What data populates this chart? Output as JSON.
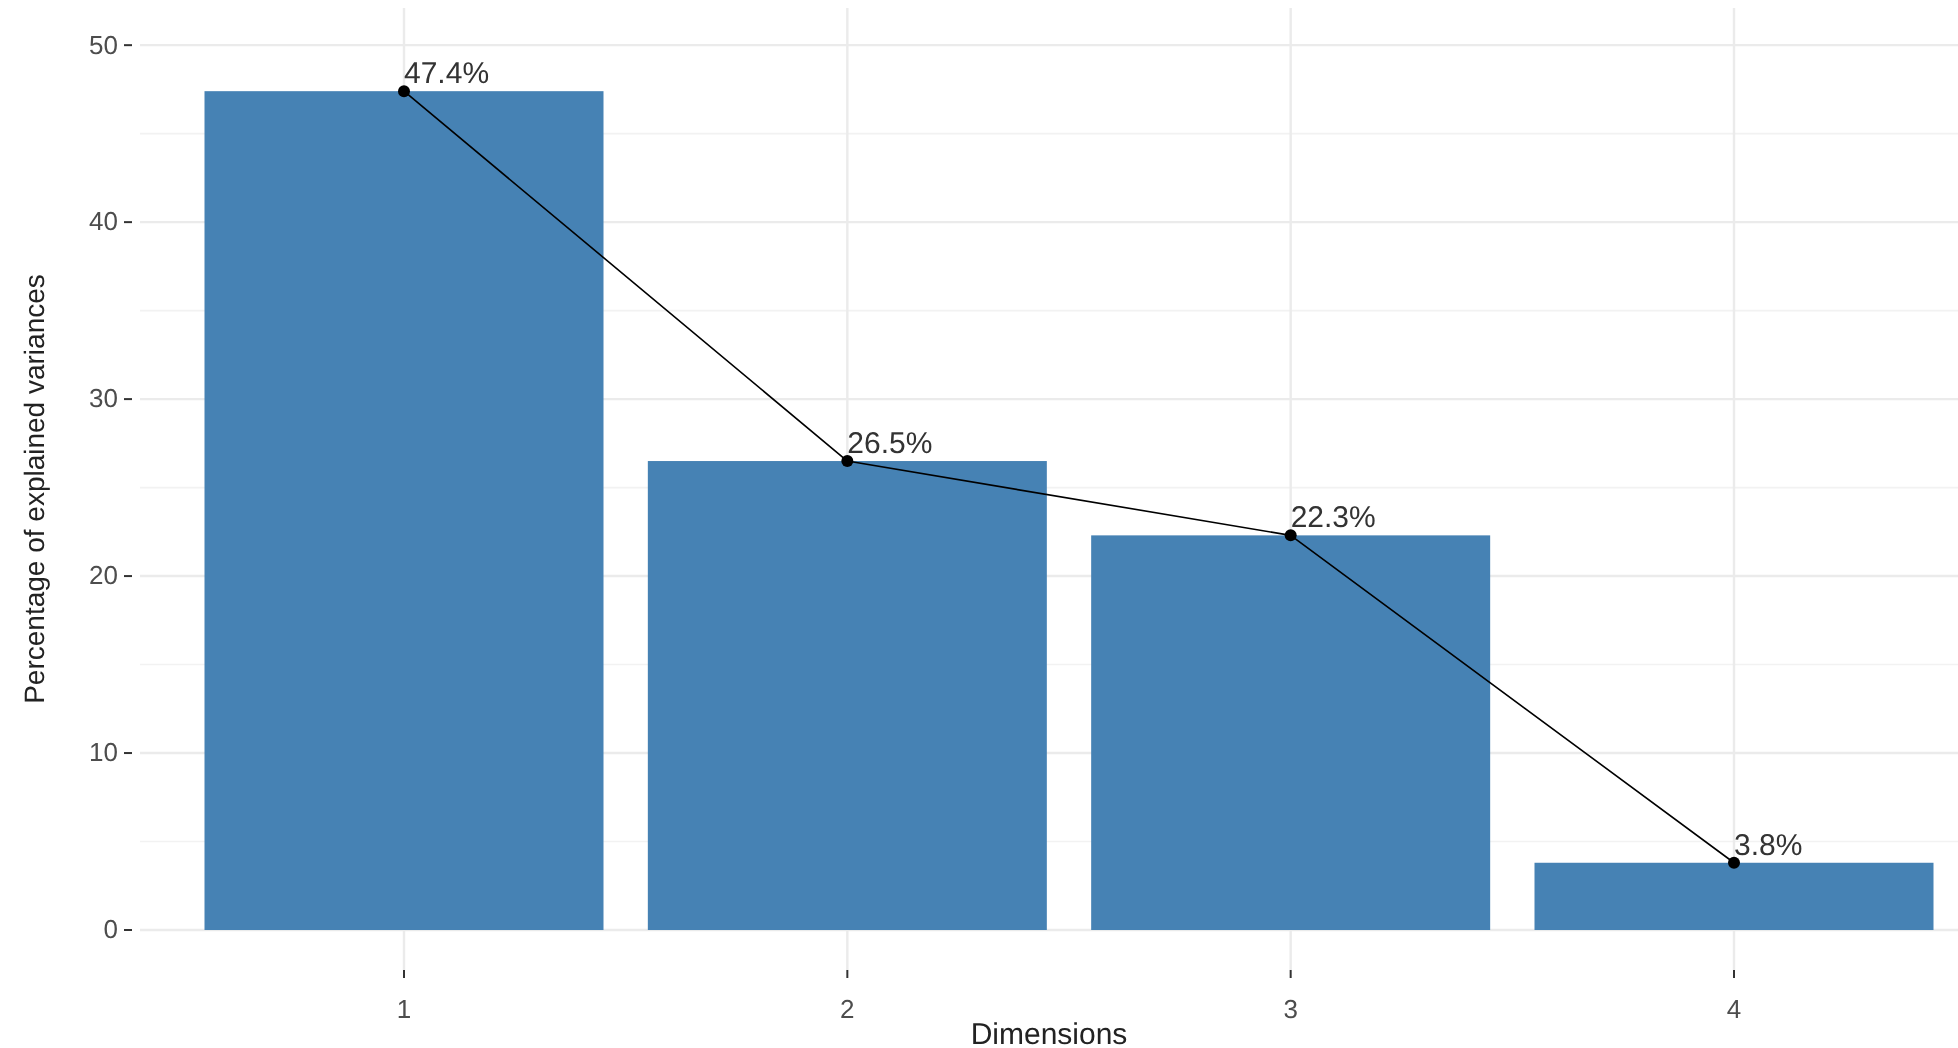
{
  "chart_data": {
    "type": "bar",
    "xlabel": "Dimensions",
    "ylabel": "Percentage of explained variances",
    "categories": [
      "1",
      "2",
      "3",
      "4"
    ],
    "series": [
      {
        "color": "#4682b4",
        "values": [
          47.4,
          26.5,
          22.3,
          3.8
        ]
      },
      {
        "type": "line",
        "color": "#000000",
        "values": [
          47.4,
          26.5,
          22.3,
          3.8
        ],
        "value_labels": [
          "47.4%",
          "26.5%",
          "22.3%",
          "3.8%"
        ],
        "marker": "circle",
        "line_style": "solid"
      }
    ],
    "ylim": [
      -2.26,
      52.1
    ],
    "yticks": [
      0,
      10,
      20,
      30,
      40,
      50
    ],
    "grid": true
  }
}
